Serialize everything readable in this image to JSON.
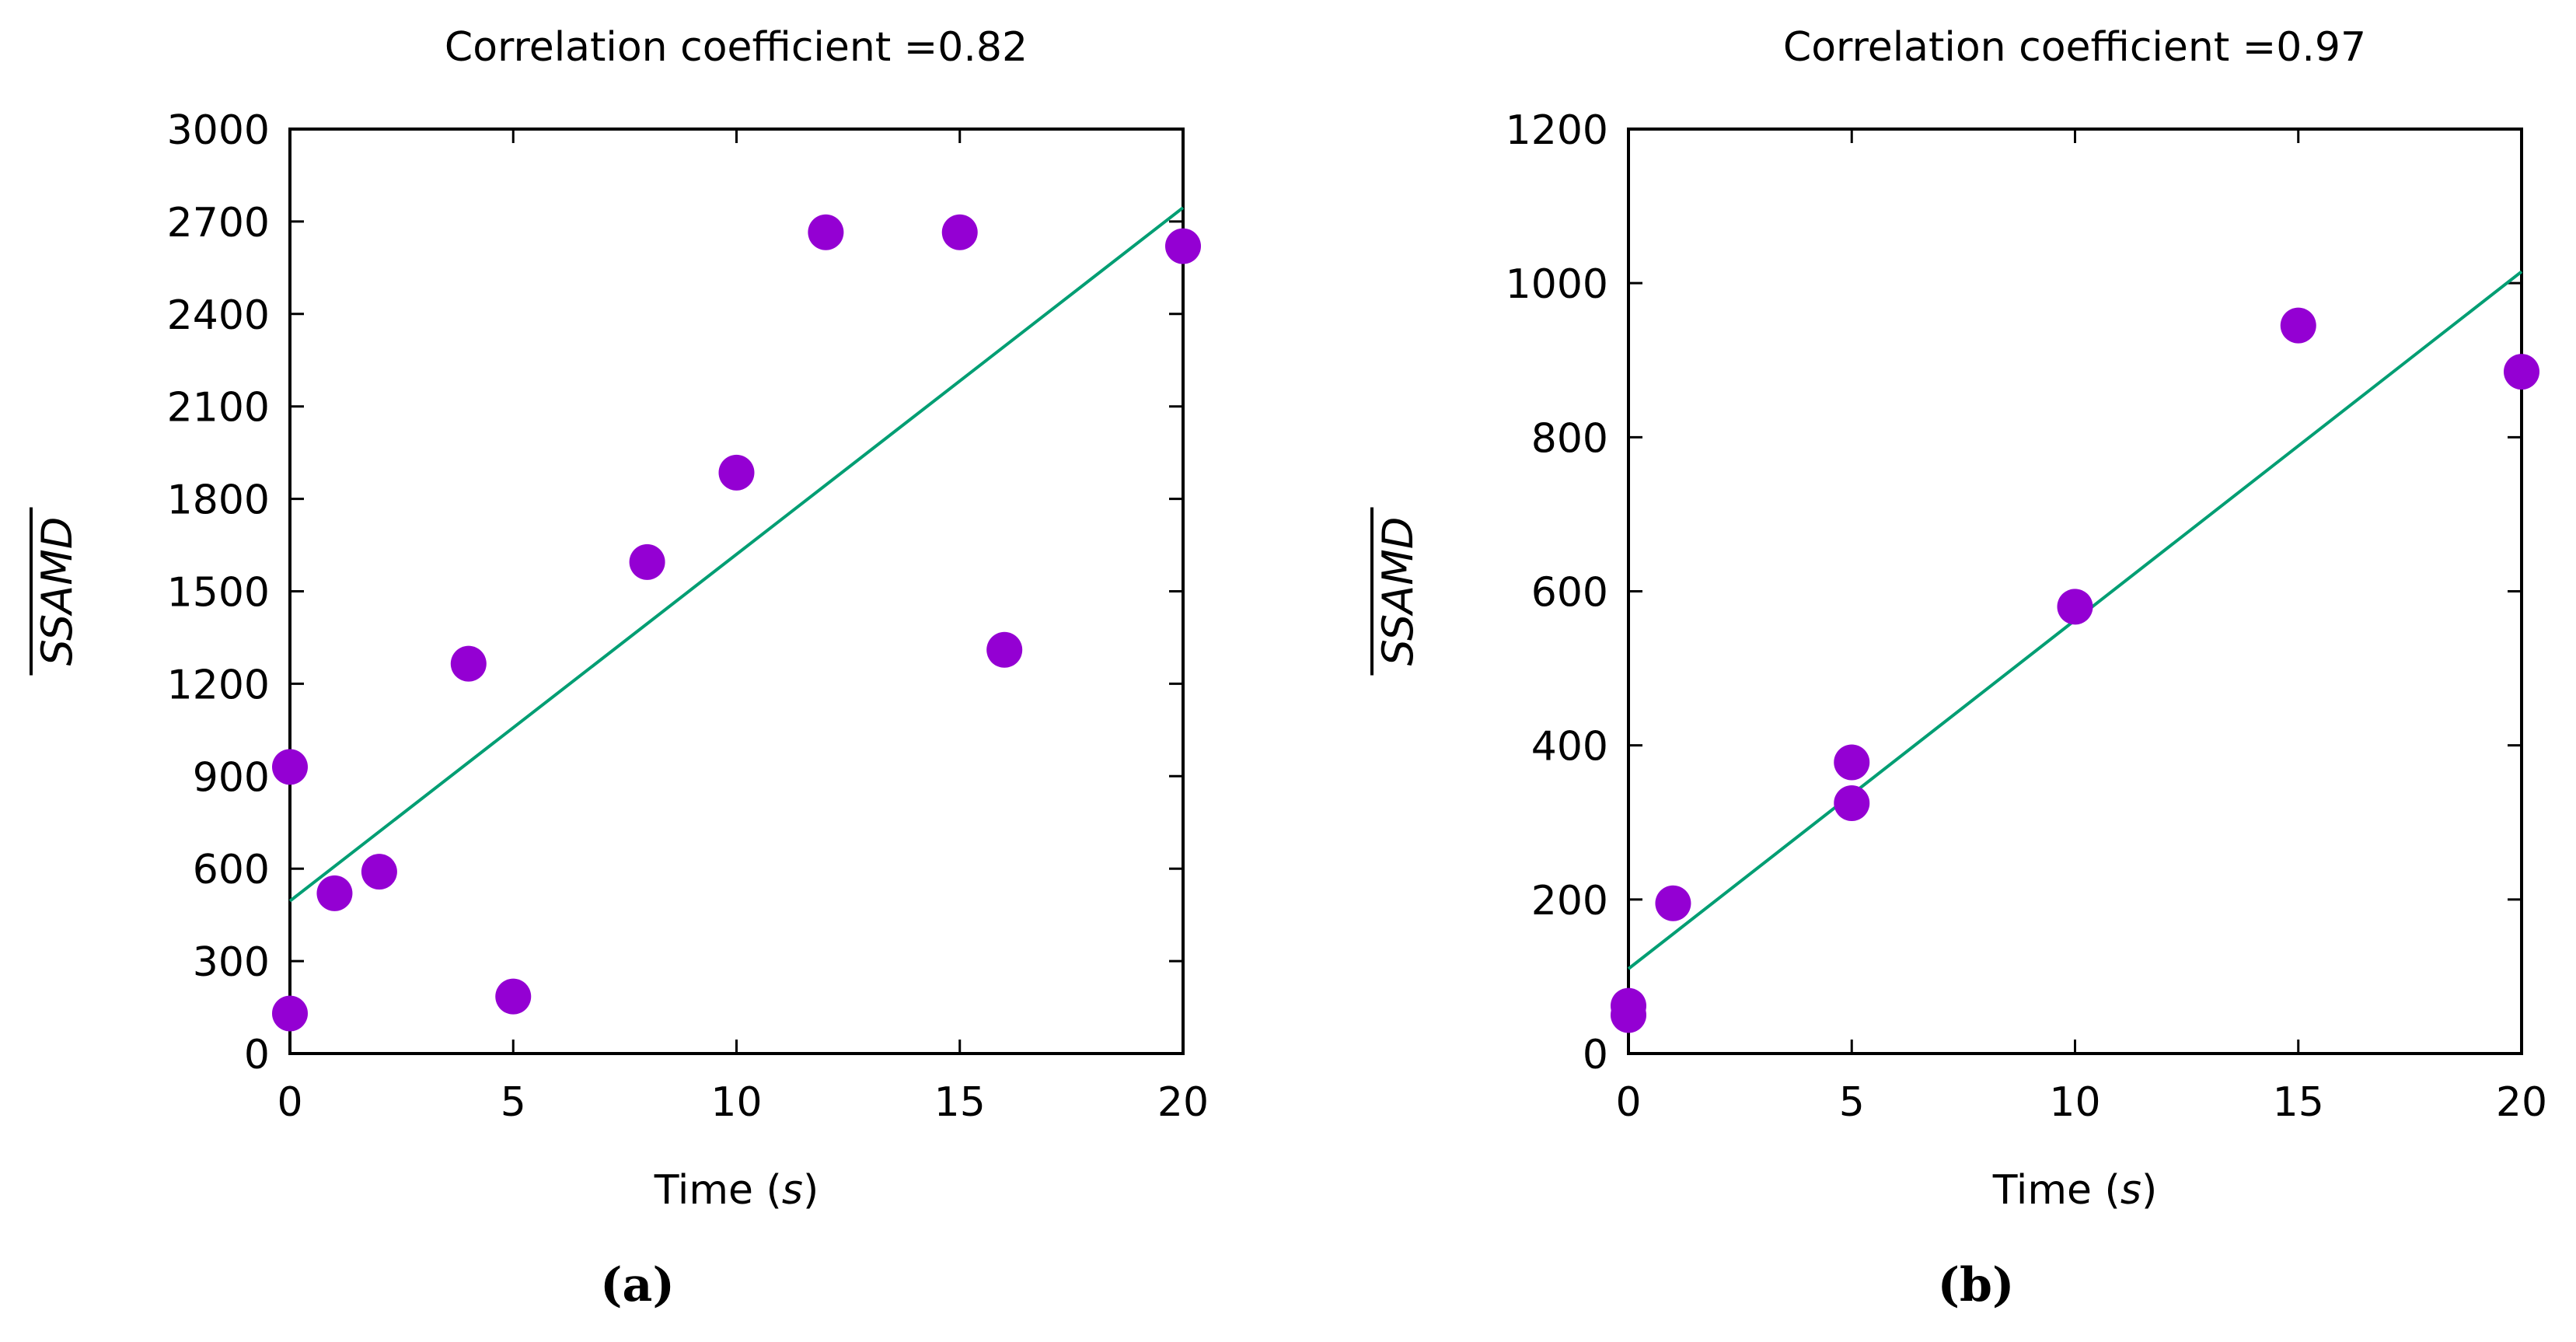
{
  "chart_data": [
    {
      "type": "scatter",
      "panel_label": "(a)",
      "title": "Correlation coefficient =0.82",
      "xlabel_prefix": "Time (",
      "xlabel_unit": "s",
      "xlabel_suffix": ")",
      "ylabel": "SSAMD",
      "xlim": [
        0,
        20
      ],
      "ylim": [
        0,
        3000
      ],
      "xticks": [
        0,
        5,
        10,
        15,
        20
      ],
      "yticks": [
        0,
        300,
        600,
        900,
        1200,
        1500,
        1800,
        2100,
        2400,
        2700,
        3000
      ],
      "grid": false,
      "points": [
        {
          "x": 0,
          "y": 130
        },
        {
          "x": 0,
          "y": 930
        },
        {
          "x": 1,
          "y": 520
        },
        {
          "x": 2,
          "y": 590
        },
        {
          "x": 4,
          "y": 1265
        },
        {
          "x": 5,
          "y": 185
        },
        {
          "x": 8,
          "y": 1595
        },
        {
          "x": 10,
          "y": 1885
        },
        {
          "x": 12,
          "y": 2665
        },
        {
          "x": 15,
          "y": 2665
        },
        {
          "x": 16,
          "y": 1310
        },
        {
          "x": 20,
          "y": 2620
        }
      ],
      "fit_line": {
        "x": [
          0,
          20
        ],
        "y": [
          495,
          2745
        ]
      },
      "marker_color": "#9400d3",
      "line_color": "#009e73"
    },
    {
      "type": "scatter",
      "panel_label": "(b)",
      "title": "Correlation coefficient =0.97",
      "xlabel_prefix": "Time (",
      "xlabel_unit": "s",
      "xlabel_suffix": ")",
      "ylabel": "SSAMD",
      "xlim": [
        0,
        20
      ],
      "ylim": [
        0,
        1200
      ],
      "xticks": [
        0,
        5,
        10,
        15,
        20
      ],
      "yticks": [
        0,
        200,
        400,
        600,
        800,
        1000,
        1200
      ],
      "grid": false,
      "points": [
        {
          "x": 0,
          "y": 50
        },
        {
          "x": 0,
          "y": 62
        },
        {
          "x": 1,
          "y": 195
        },
        {
          "x": 5,
          "y": 325
        },
        {
          "x": 5,
          "y": 378
        },
        {
          "x": 10,
          "y": 580
        },
        {
          "x": 15,
          "y": 945
        },
        {
          "x": 20,
          "y": 885
        }
      ],
      "fit_line": {
        "x": [
          0,
          20
        ],
        "y": [
          110,
          1015
        ]
      },
      "marker_color": "#9400d3",
      "line_color": "#009e73"
    }
  ]
}
